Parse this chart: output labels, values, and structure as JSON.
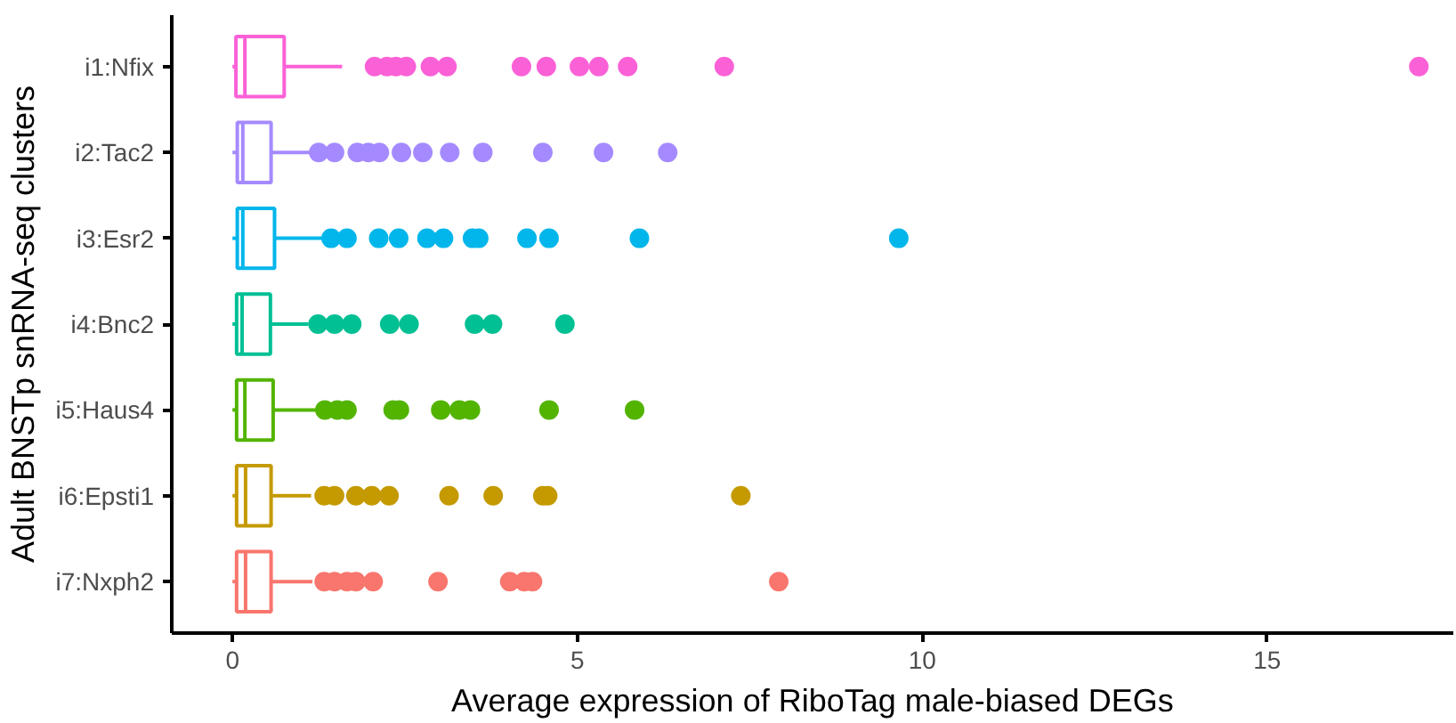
{
  "chart_data": {
    "type": "box",
    "orientation": "horizontal",
    "xlabel": "Average expression of RiboTag male-biased DEGs",
    "ylabel": "Adult BNSTp snRNA-seq clusters",
    "categories": [
      "i1:Nfix",
      "i2:Tac2",
      "i3:Esr2",
      "i4:Bnc2",
      "i5:Haus4",
      "i6:Epsti1",
      "i7:Nxph2"
    ],
    "colors": [
      "#fb61d7",
      "#a58aff",
      "#00b6eb",
      "#00c094",
      "#53b400",
      "#c49a00",
      "#f8766d"
    ],
    "boxes": [
      {
        "low": 0,
        "q1": 0.05,
        "median": 0.18,
        "q3": 0.75,
        "high": 1.59,
        "outliers": [
          2.06,
          2.24,
          2.37,
          2.52,
          2.87,
          3.11,
          4.19,
          4.55,
          5.03,
          5.31,
          5.73,
          7.13,
          17.2
        ]
      },
      {
        "low": 0,
        "q1": 0.07,
        "median": 0.15,
        "q3": 0.56,
        "high": 1.12,
        "outliers": [
          1.25,
          1.48,
          1.81,
          1.97,
          2.13,
          2.45,
          2.76,
          3.15,
          3.63,
          4.5,
          5.38,
          6.31
        ]
      },
      {
        "low": 0,
        "q1": 0.07,
        "median": 0.15,
        "q3": 0.61,
        "high": 1.34,
        "outliers": [
          1.43,
          1.66,
          2.12,
          2.41,
          2.82,
          3.06,
          3.48,
          3.57,
          4.27,
          4.59,
          5.9,
          9.66
        ]
      },
      {
        "low": 0,
        "q1": 0.06,
        "median": 0.14,
        "q3": 0.55,
        "high": 1.1,
        "outliers": [
          1.24,
          1.48,
          1.73,
          2.28,
          2.56,
          3.51,
          3.77,
          4.82
        ]
      },
      {
        "low": 0,
        "q1": 0.06,
        "median": 0.18,
        "q3": 0.59,
        "high": 1.3,
        "outliers": [
          1.34,
          1.52,
          1.66,
          2.33,
          2.42,
          3.02,
          3.29,
          3.45,
          4.59,
          5.83
        ]
      },
      {
        "low": 0,
        "q1": 0.06,
        "median": 0.19,
        "q3": 0.56,
        "high": 1.14,
        "outliers": [
          1.33,
          1.48,
          1.79,
          2.02,
          2.27,
          3.14,
          3.78,
          4.5,
          4.57,
          7.37
        ]
      },
      {
        "low": 0,
        "q1": 0.06,
        "median": 0.19,
        "q3": 0.56,
        "high": 1.16,
        "outliers": [
          1.33,
          1.48,
          1.66,
          1.79,
          2.04,
          2.98,
          4.02,
          4.23,
          4.35,
          7.92
        ]
      }
    ],
    "xlim": [
      -0.88,
      17.7
    ],
    "xticks": [
      0,
      5,
      10,
      15
    ],
    "grid": false
  }
}
